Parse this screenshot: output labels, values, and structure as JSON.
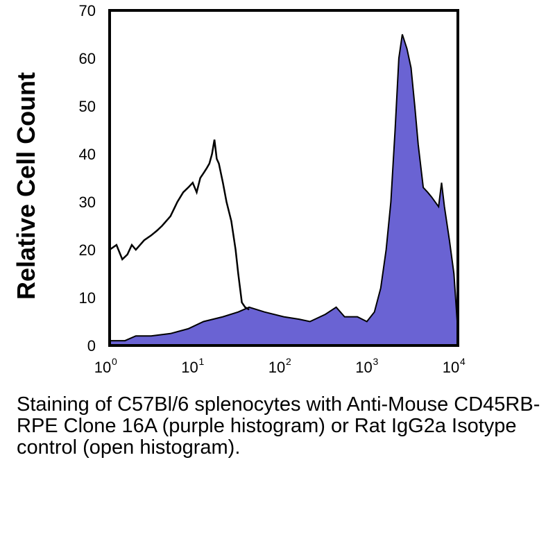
{
  "chart_data": {
    "type": "area",
    "title": "",
    "xlabel": "",
    "ylabel": "Relative Cell Count",
    "x_scale": "log10",
    "xlim": [
      1,
      10000
    ],
    "ylim": [
      0,
      70
    ],
    "grid": false,
    "x_ticks": [
      {
        "base": "10",
        "exp": "0"
      },
      {
        "base": "10",
        "exp": "1"
      },
      {
        "base": "10",
        "exp": "2"
      },
      {
        "base": "10",
        "exp": "3"
      },
      {
        "base": "10",
        "exp": "4"
      }
    ],
    "y_ticks": [
      "0",
      "10",
      "20",
      "30",
      "40",
      "50",
      "60",
      "70"
    ],
    "series": [
      {
        "style": "filled",
        "color": "#6a63d3",
        "points": [
          [
            1,
            1
          ],
          [
            1.5,
            1
          ],
          [
            2,
            2
          ],
          [
            3,
            2
          ],
          [
            5,
            2.5
          ],
          [
            8,
            3.5
          ],
          [
            12,
            5
          ],
          [
            20,
            6
          ],
          [
            30,
            7
          ],
          [
            40,
            8
          ],
          [
            60,
            7
          ],
          [
            100,
            6
          ],
          [
            150,
            5.5
          ],
          [
            200,
            5
          ],
          [
            300,
            6.5
          ],
          [
            400,
            8
          ],
          [
            500,
            6
          ],
          [
            700,
            6
          ],
          [
            900,
            5
          ],
          [
            1100,
            7
          ],
          [
            1300,
            12
          ],
          [
            1500,
            20
          ],
          [
            1700,
            30
          ],
          [
            1900,
            45
          ],
          [
            2100,
            60
          ],
          [
            2300,
            65
          ],
          [
            2600,
            62
          ],
          [
            2900,
            58
          ],
          [
            3200,
            50
          ],
          [
            3500,
            42
          ],
          [
            4000,
            33
          ],
          [
            4500,
            32
          ],
          [
            5000,
            31
          ],
          [
            6000,
            29
          ],
          [
            6500,
            34
          ],
          [
            7000,
            29
          ],
          [
            8000,
            22
          ],
          [
            9000,
            15
          ],
          [
            10000,
            3
          ]
        ]
      },
      {
        "style": "open",
        "color": "#000000",
        "points": [
          [
            1,
            20
          ],
          [
            1.2,
            21
          ],
          [
            1.4,
            18
          ],
          [
            1.6,
            19
          ],
          [
            1.8,
            21
          ],
          [
            2,
            20
          ],
          [
            2.5,
            22
          ],
          [
            3,
            23
          ],
          [
            3.5,
            24
          ],
          [
            4,
            25
          ],
          [
            5,
            27
          ],
          [
            6,
            30
          ],
          [
            7,
            32
          ],
          [
            8,
            33
          ],
          [
            9,
            34
          ],
          [
            10,
            32
          ],
          [
            11,
            35
          ],
          [
            12,
            36
          ],
          [
            13,
            37
          ],
          [
            14,
            38
          ],
          [
            15,
            40
          ],
          [
            16,
            43
          ],
          [
            17,
            39
          ],
          [
            18,
            38
          ],
          [
            20,
            34
          ],
          [
            22,
            30
          ],
          [
            25,
            26
          ],
          [
            28,
            20
          ],
          [
            30,
            15
          ],
          [
            33,
            9
          ],
          [
            36,
            8
          ],
          [
            40,
            7.5
          ]
        ]
      }
    ]
  },
  "caption": "Staining of C57Bl/6 splenocytes with Anti-Mouse CD45RB-RPE Clone 16A (purple histogram) or Rat IgG2a Isotype control (open histogram)."
}
